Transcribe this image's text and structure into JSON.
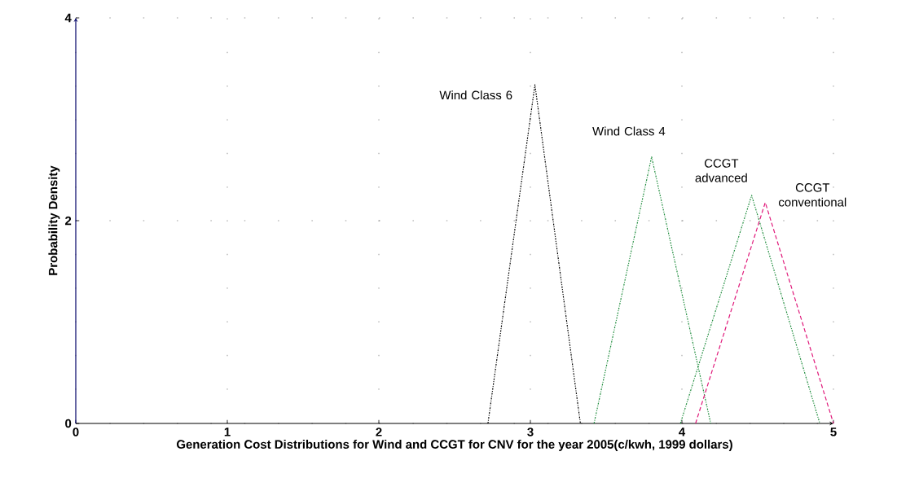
{
  "chart_data": {
    "type": "line",
    "xlabel": "Generation Cost Distributions for Wind and CCGT for CNV for the year 2005(c/kwh, 1999 dollars)",
    "ylabel": "Probability Density",
    "series": [
      {
        "name": "Wind Class 6",
        "color": "#000000",
        "line_style": "dotted",
        "x": [
          2.72,
          3.03,
          3.33
        ],
        "values": [
          0,
          3.34,
          0
        ]
      },
      {
        "name": "Wind Class 4",
        "color": "#1e8c3c",
        "line_style": "dotted",
        "x": [
          3.42,
          3.8,
          4.19
        ],
        "values": [
          0,
          2.63,
          0
        ]
      },
      {
        "name": "CCGT advanced",
        "color": "#1e8c3c",
        "line_style": "dotted",
        "x": [
          3.99,
          4.46,
          4.91
        ],
        "values": [
          0,
          2.25,
          0
        ]
      },
      {
        "name": "CCGT conventional",
        "color": "#e0197a",
        "line_style": "dashed",
        "x": [
          4.09,
          4.55,
          5.0
        ],
        "values": [
          0,
          2.18,
          0
        ]
      }
    ],
    "xlim": [
      0,
      5
    ],
    "ylim": [
      0,
      4
    ],
    "xticks": [
      0,
      1,
      2,
      3,
      4,
      5
    ],
    "yticks": [
      0,
      2,
      4
    ],
    "grid": true,
    "marker": "none"
  }
}
